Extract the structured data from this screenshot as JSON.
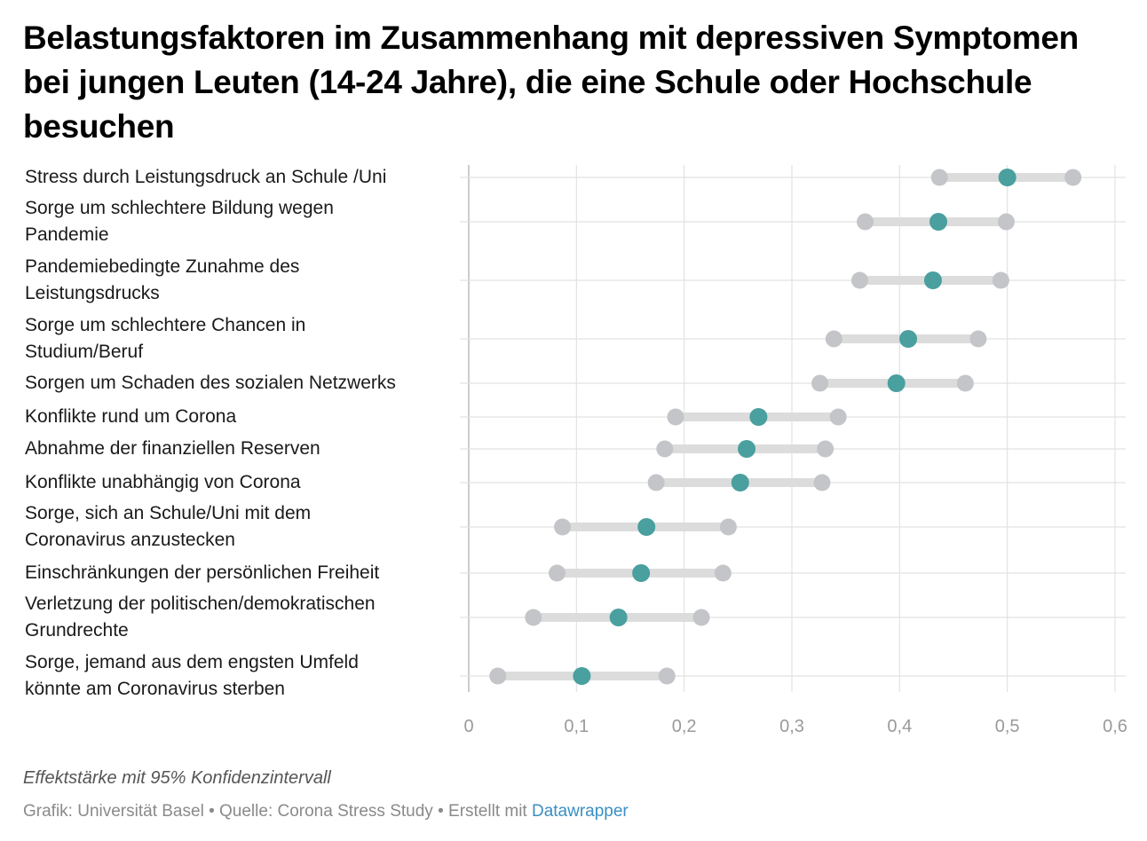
{
  "title": "Belastungsfaktoren im Zusammenhang mit depressiven Symptomen bei jungen Leuten (14-24 Jahre), die eine Schule oder Hochschule besuchen",
  "notes": "Effektstärke mit 95% Konfidenzintervall",
  "footer": {
    "grafik": "Grafik: Universität Basel",
    "sep": " • ",
    "quelle": "Quelle: Corona Stress Study",
    "erstellt": "Erstellt mit ",
    "tool": "Datawrapper"
  },
  "colors": {
    "point": "#4a9f9f",
    "ci_end": "#c3c5c8",
    "ci_bar": "#dcdcdc",
    "grid": "#e2e2e2",
    "axis": "#cccccc",
    "tick": "#9a9a9a"
  },
  "chart_data": {
    "type": "dot-range",
    "xlim": [
      0,
      0.6
    ],
    "xticks": [
      "0",
      "0,1",
      "0,2",
      "0,3",
      "0,4",
      "0,5",
      "0,6"
    ],
    "xtick_values": [
      0,
      0.1,
      0.2,
      0.3,
      0.4,
      0.5,
      0.6
    ],
    "rows": [
      {
        "label": "Stress durch Leistungsdruck an Schule /Uni",
        "low": 0.437,
        "value": 0.5,
        "high": 0.561
      },
      {
        "label": "Sorge um schlechtere Bildung wegen Pandemie",
        "low": 0.368,
        "value": 0.436,
        "high": 0.499
      },
      {
        "label": "Pandemiebedingte Zunahme des Leistungsdrucks",
        "low": 0.363,
        "value": 0.431,
        "high": 0.494
      },
      {
        "label": "Sorge um schlechtere Chancen in Studium/Beruf",
        "low": 0.339,
        "value": 0.408,
        "high": 0.473
      },
      {
        "label": "Sorgen um Schaden des sozialen Netzwerks",
        "low": 0.326,
        "value": 0.397,
        "high": 0.461
      },
      {
        "label": "Konflikte rund um Corona",
        "low": 0.192,
        "value": 0.269,
        "high": 0.343
      },
      {
        "label": "Abnahme der finanziellen Reserven",
        "low": 0.182,
        "value": 0.258,
        "high": 0.331
      },
      {
        "label": "Konflikte unabhängig von Corona",
        "low": 0.174,
        "value": 0.252,
        "high": 0.328
      },
      {
        "label": "Sorge, sich an Schule/Uni mit dem Coronavirus anzustecken",
        "low": 0.087,
        "value": 0.165,
        "high": 0.241
      },
      {
        "label": "Einschränkungen der persönlichen Freiheit",
        "low": 0.082,
        "value": 0.16,
        "high": 0.236
      },
      {
        "label": "Verletzung der politischen/demokratischen Grundrechte",
        "low": 0.06,
        "value": 0.139,
        "high": 0.216
      },
      {
        "label": "Sorge, jemand aus dem engsten Umfeld könnte am Coronavirus sterben",
        "low": 0.027,
        "value": 0.105,
        "high": 0.184
      }
    ]
  }
}
